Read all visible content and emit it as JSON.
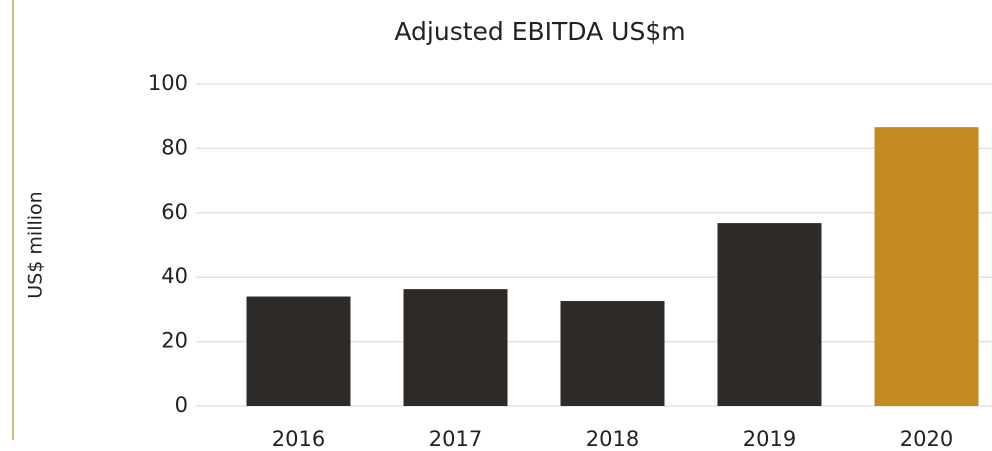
{
  "chart_data": {
    "type": "bar",
    "title": "Adjusted EBITDA US$m",
    "y_label": "US$ million",
    "categories": [
      "2016",
      "2017",
      "2018",
      "2019",
      "2020"
    ],
    "values": [
      34,
      36.3,
      32.6,
      56.8,
      86.6
    ],
    "colors": [
      "#2e2a27",
      "#2e2a27",
      "#2e2a27",
      "#2e2a27",
      "#c48a22"
    ],
    "ylim": [
      0,
      100
    ],
    "yticks": [
      0,
      20,
      40,
      60,
      80,
      100
    ],
    "grid": true
  }
}
